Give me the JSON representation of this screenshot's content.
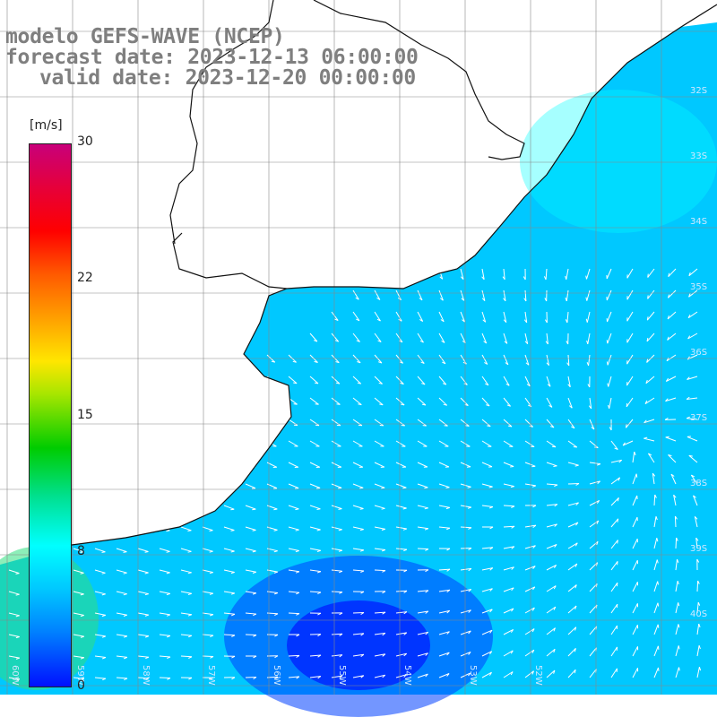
{
  "title": {
    "line1": "modelo GEFS-WAVE (NCEP)",
    "line2": "forecast date: 2023-12-13 06:00:00",
    "line3": "valid date: 2023-12-20 00:00:00"
  },
  "colorbar": {
    "unit": "[m/s]",
    "ticks": [
      {
        "label": "30",
        "value": 30
      },
      {
        "label": "22",
        "value": 22
      },
      {
        "label": "15",
        "value": 15
      },
      {
        "label": "8",
        "value": 8
      },
      {
        "label": "0",
        "value": 0
      }
    ],
    "range": [
      0,
      30
    ]
  },
  "map": {
    "ocean_colors": {
      "high": "#00ffff",
      "mid": "#00c8ff",
      "low": "#0040ff",
      "calm": "#0010ff",
      "green": "#30e080"
    },
    "lat_labels": [
      "32S",
      "33S",
      "34S",
      "35S",
      "36S",
      "37S",
      "38S",
      "39S",
      "40S"
    ],
    "lon_labels": [
      "60W",
      "59W",
      "58W",
      "57W",
      "56W",
      "55W",
      "54W",
      "53W",
      "52W"
    ]
  }
}
